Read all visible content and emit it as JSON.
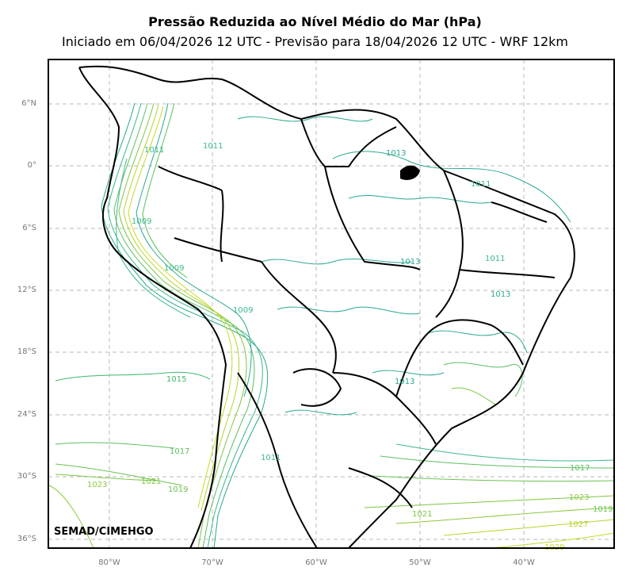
{
  "title": "Pressão Reduzida ao Nível Médio do Mar (hPa)",
  "subtitle": "Iniciado em 06/04/2026 12 UTC - Previsão para 18/04/2026 12 UTC - WRF 12km",
  "credit": "SEMAD/CIMEHGO",
  "lat_labels": [
    "6°N",
    "0°",
    "6°S",
    "12°S",
    "18°S",
    "24°S",
    "30°S",
    "36°S"
  ],
  "lon_labels": [
    "80°W",
    "70°W",
    "60°W",
    "50°W",
    "40°W"
  ],
  "contour_labels": [
    {
      "text": "1011",
      "color": "#3cb88c"
    },
    {
      "text": "1011",
      "color": "#3cb88c"
    },
    {
      "text": "1013",
      "color": "#2aa890"
    },
    {
      "text": "1011",
      "color": "#3cb88c"
    },
    {
      "text": "1009",
      "color": "#3cb88c"
    },
    {
      "text": "1009",
      "color": "#3cb88c"
    },
    {
      "text": "1013",
      "color": "#2aa890"
    },
    {
      "text": "1011",
      "color": "#3cb88c"
    },
    {
      "text": "1013",
      "color": "#2aa890"
    },
    {
      "text": "1009",
      "color": "#3cb88c"
    },
    {
      "text": "1015",
      "color": "#3cb86c"
    },
    {
      "text": "1013",
      "color": "#2aa890"
    },
    {
      "text": "1017",
      "color": "#5ac060"
    },
    {
      "text": "1011",
      "color": "#3cb88c"
    },
    {
      "text": "1023",
      "color": "#8cc83c"
    },
    {
      "text": "1021",
      "color": "#7cc644"
    },
    {
      "text": "1019",
      "color": "#6cc450"
    },
    {
      "text": "1021",
      "color": "#7cc644"
    },
    {
      "text": "1017",
      "color": "#5ac060"
    },
    {
      "text": "1023",
      "color": "#8cc83c"
    },
    {
      "text": "1027",
      "color": "#b4d42c"
    },
    {
      "text": "1029",
      "color": "#c8da24"
    },
    {
      "text": "1019",
      "color": "#6cc450"
    }
  ],
  "colors": {
    "frame": "#000000",
    "grid": "#b8b8b8",
    "border": "#000000",
    "contour_low": "#2aa890",
    "contour_mid": "#5ac060",
    "contour_high": "#c8da24"
  }
}
